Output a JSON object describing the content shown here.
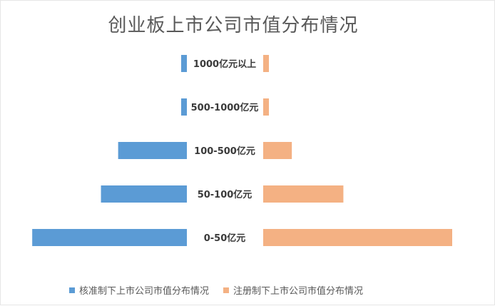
{
  "chart_data": {
    "type": "bar",
    "orientation": "horizontal-butterfly",
    "title": "创业板上市公司市值分布情况",
    "categories": [
      "1000亿元以上",
      "500-1000亿元",
      "100-500亿元",
      "50-100亿元",
      "0-50亿元"
    ],
    "series": [
      {
        "name": "核准制下上市公司市值分布情况",
        "values": [
          1,
          1,
          12,
          15,
          27
        ],
        "color": "#5b9bd5",
        "side": "left"
      },
      {
        "name": "注册制下上市公司市值分布情况",
        "values": [
          1,
          1,
          5,
          14,
          33
        ],
        "color": "#f4b183",
        "side": "right"
      }
    ],
    "grid": false,
    "legend": "bottom"
  }
}
